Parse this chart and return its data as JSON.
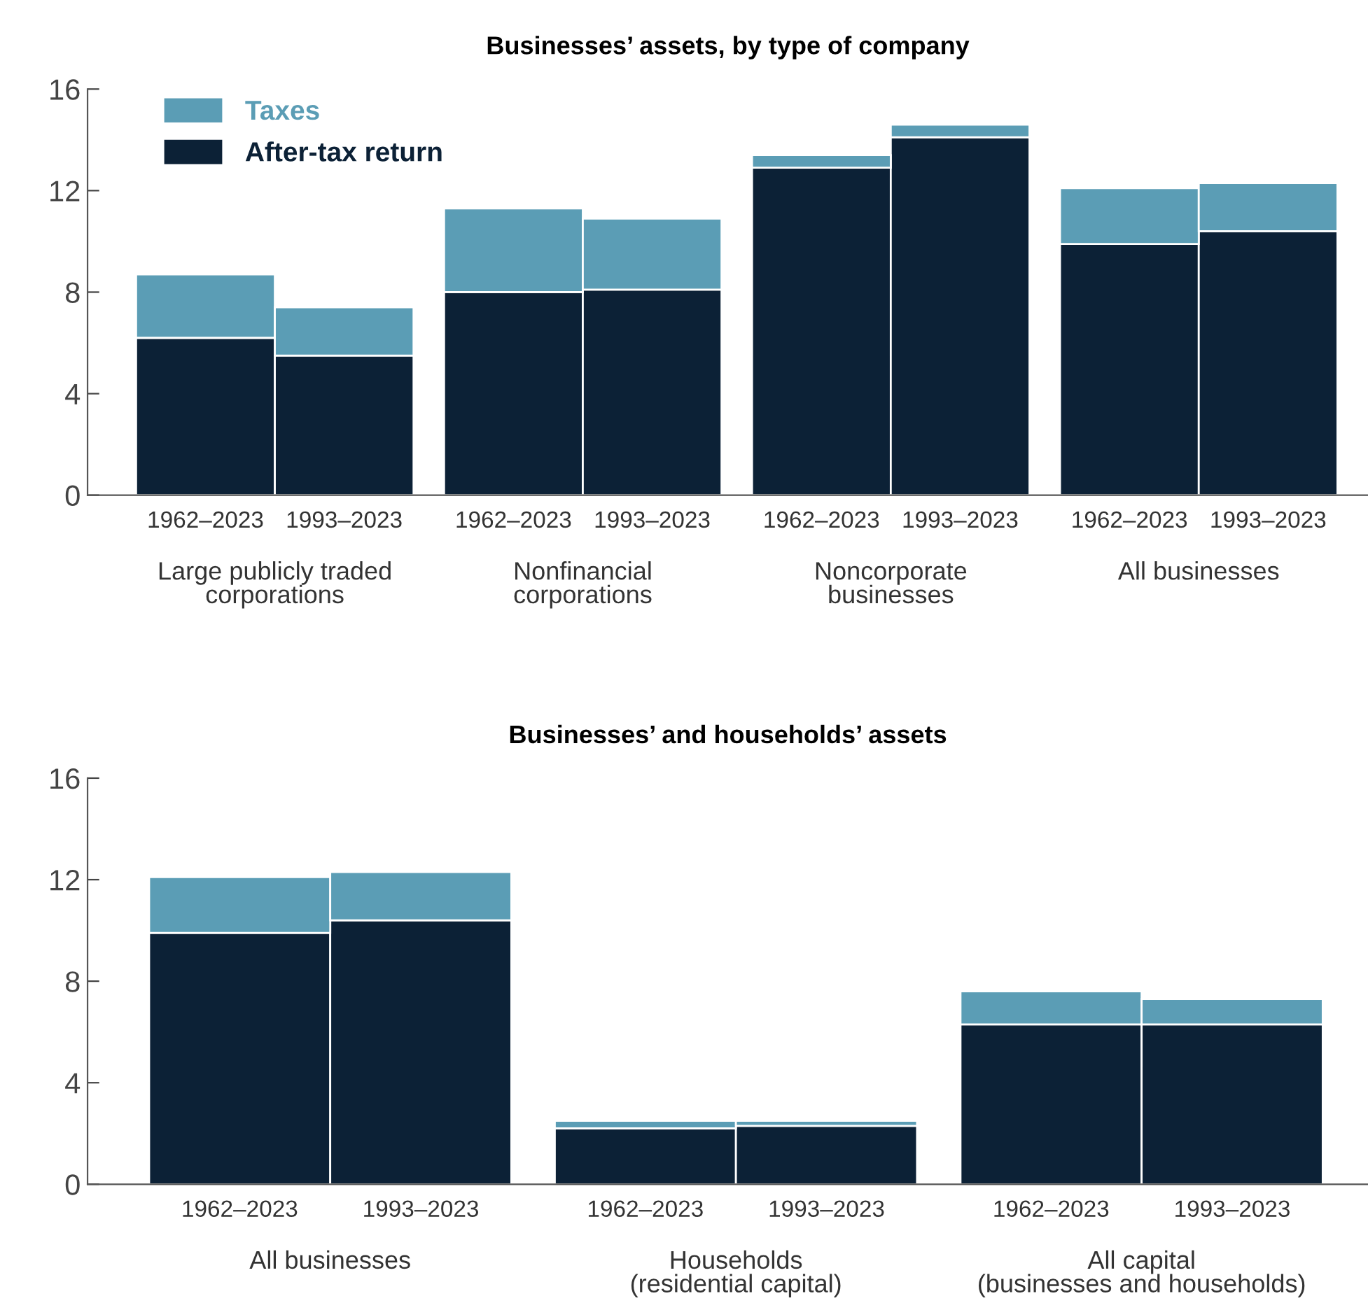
{
  "chart_data": [
    {
      "type": "bar",
      "title": "Businesses’ assets, by type of company",
      "stacked": true,
      "legend": "top left",
      "grid": false,
      "categories": [
        "1962–2023",
        "1993–2023",
        "1962–2023",
        "1993–2023",
        "1962–2023",
        "1993–2023",
        "1962–2023",
        "1993–2023"
      ],
      "series": [
        {
          "name": "After-tax return",
          "color": "#0c2136",
          "values": [
            6.2,
            5.5,
            8.0,
            8.1,
            12.9,
            14.1,
            9.9,
            10.4
          ]
        },
        {
          "name": "Taxes",
          "color": "#5b9db5",
          "values": [
            2.5,
            1.9,
            3.3,
            2.8,
            0.5,
            0.5,
            2.2,
            1.9
          ]
        }
      ],
      "ylim": [
        0,
        16
      ],
      "yticks": [
        0,
        4,
        8,
        12,
        16
      ],
      "annotations": [
        "Large publicly traded\ncorporations",
        "Nonfinancial\ncorporations",
        "Noncorporate\nbusinesses",
        "All businesses"
      ]
    },
    {
      "type": "bar",
      "title": "Businesses’ and households’ assets",
      "stacked": true,
      "legend": false,
      "grid": false,
      "categories": [
        "1962–2023",
        "1993–2023",
        "1962–2023",
        "1993–2023",
        "1962–2023",
        "1993–2023"
      ],
      "series": [
        {
          "color": "#0c2136",
          "values": [
            9.9,
            10.4,
            2.2,
            2.3,
            6.3,
            6.3
          ]
        },
        {
          "color": "#5b9db5",
          "values": [
            2.2,
            1.9,
            0.3,
            0.2,
            1.3,
            1.0
          ]
        }
      ],
      "ylim": [
        0,
        16
      ],
      "yticks": [
        0,
        4,
        8,
        12,
        16
      ],
      "annotations": [
        "All businesses",
        "Households\n(residential capital)",
        "All capital\n(businesses and households)"
      ]
    }
  ]
}
